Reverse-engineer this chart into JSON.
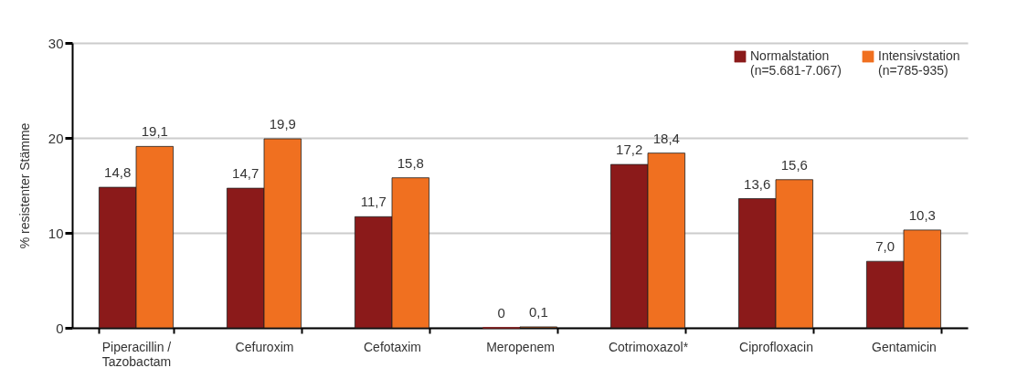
{
  "chart_data": {
    "type": "bar",
    "ylabel": "% resistenter Stämme",
    "categories": [
      "Piperacillin /\nTazobactam",
      "Cefuroxim",
      "Cefotaxim",
      "Meropenem",
      "Cotrimoxazol*",
      "Ciprofloxacin",
      "Gentamicin"
    ],
    "series": [
      {
        "name": "Normalstation\n(n=5.681-7.067)",
        "color": "#8b1a1a",
        "values": [
          14.8,
          14.7,
          11.7,
          0,
          17.2,
          13.6,
          7.0
        ],
        "value_labels": [
          "14,8",
          "14,7",
          "11,7",
          "0",
          "17,2",
          "13,6",
          "7,0"
        ]
      },
      {
        "name": "Intensivstation\n(n=785-935)",
        "color": "#f07020",
        "values": [
          19.1,
          19.9,
          15.8,
          0.1,
          18.4,
          15.6,
          10.3
        ],
        "value_labels": [
          "19,1",
          "19,9",
          "15,8",
          "0,1",
          "18,4",
          "15,6",
          "10,3"
        ]
      }
    ],
    "ylim": [
      0,
      30
    ],
    "yticks": [
      0,
      10,
      20,
      30
    ],
    "grid": "y",
    "legend": "top right"
  }
}
